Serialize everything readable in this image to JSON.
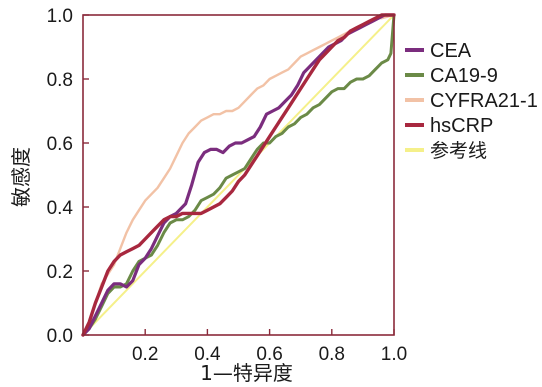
{
  "chart_data": {
    "type": "line",
    "title": "",
    "xlabel": "1—特异度",
    "ylabel": "敏感度",
    "xlim": [
      0,
      1
    ],
    "ylim": [
      0,
      1
    ],
    "x_ticks": [
      "0.2",
      "0.4",
      "0.6",
      "0.8",
      "1.0"
    ],
    "x_tick_values": [
      0.2,
      0.4,
      0.6,
      0.8,
      1.0
    ],
    "y_ticks": [
      "0.0",
      "0.2",
      "0.4",
      "0.6",
      "0.8",
      "1.0"
    ],
    "y_tick_values": [
      0.0,
      0.2,
      0.4,
      0.6,
      0.8,
      1.0
    ],
    "grid": false,
    "legend_position": "top-right",
    "series": [
      {
        "name": "CEA",
        "color": "#7b2d7e",
        "points": [
          [
            0,
            0
          ],
          [
            0.02,
            0.02
          ],
          [
            0.04,
            0.06
          ],
          [
            0.06,
            0.1
          ],
          [
            0.08,
            0.14
          ],
          [
            0.1,
            0.16
          ],
          [
            0.12,
            0.16
          ],
          [
            0.14,
            0.15
          ],
          [
            0.16,
            0.17
          ],
          [
            0.18,
            0.22
          ],
          [
            0.2,
            0.24
          ],
          [
            0.22,
            0.27
          ],
          [
            0.24,
            0.31
          ],
          [
            0.26,
            0.35
          ],
          [
            0.28,
            0.37
          ],
          [
            0.3,
            0.38
          ],
          [
            0.33,
            0.41
          ],
          [
            0.35,
            0.47
          ],
          [
            0.37,
            0.54
          ],
          [
            0.39,
            0.57
          ],
          [
            0.41,
            0.58
          ],
          [
            0.43,
            0.58
          ],
          [
            0.45,
            0.57
          ],
          [
            0.47,
            0.59
          ],
          [
            0.49,
            0.6
          ],
          [
            0.51,
            0.6
          ],
          [
            0.53,
            0.61
          ],
          [
            0.55,
            0.62
          ],
          [
            0.57,
            0.65
          ],
          [
            0.59,
            0.69
          ],
          [
            0.61,
            0.7
          ],
          [
            0.63,
            0.71
          ],
          [
            0.65,
            0.73
          ],
          [
            0.67,
            0.75
          ],
          [
            0.69,
            0.78
          ],
          [
            0.71,
            0.82
          ],
          [
            0.73,
            0.84
          ],
          [
            0.75,
            0.86
          ],
          [
            0.77,
            0.88
          ],
          [
            0.79,
            0.9
          ],
          [
            0.81,
            0.91
          ],
          [
            0.83,
            0.92
          ],
          [
            0.85,
            0.94
          ],
          [
            0.87,
            0.95
          ],
          [
            0.89,
            0.96
          ],
          [
            0.91,
            0.97
          ],
          [
            0.93,
            0.98
          ],
          [
            0.95,
            0.99
          ],
          [
            0.97,
            1.0
          ],
          [
            1.0,
            1.0
          ]
        ]
      },
      {
        "name": "CA19-9",
        "color": "#6b8a47",
        "points": [
          [
            0,
            0
          ],
          [
            0.02,
            0.02
          ],
          [
            0.04,
            0.05
          ],
          [
            0.06,
            0.09
          ],
          [
            0.08,
            0.13
          ],
          [
            0.1,
            0.15
          ],
          [
            0.12,
            0.15
          ],
          [
            0.14,
            0.16
          ],
          [
            0.16,
            0.2
          ],
          [
            0.18,
            0.23
          ],
          [
            0.2,
            0.24
          ],
          [
            0.22,
            0.25
          ],
          [
            0.24,
            0.28
          ],
          [
            0.26,
            0.32
          ],
          [
            0.28,
            0.35
          ],
          [
            0.3,
            0.36
          ],
          [
            0.32,
            0.36
          ],
          [
            0.34,
            0.37
          ],
          [
            0.36,
            0.39
          ],
          [
            0.38,
            0.42
          ],
          [
            0.4,
            0.43
          ],
          [
            0.42,
            0.44
          ],
          [
            0.44,
            0.46
          ],
          [
            0.46,
            0.49
          ],
          [
            0.48,
            0.5
          ],
          [
            0.5,
            0.51
          ],
          [
            0.52,
            0.52
          ],
          [
            0.54,
            0.55
          ],
          [
            0.56,
            0.58
          ],
          [
            0.58,
            0.6
          ],
          [
            0.6,
            0.6
          ],
          [
            0.62,
            0.62
          ],
          [
            0.64,
            0.63
          ],
          [
            0.66,
            0.65
          ],
          [
            0.68,
            0.66
          ],
          [
            0.7,
            0.68
          ],
          [
            0.72,
            0.69
          ],
          [
            0.74,
            0.71
          ],
          [
            0.76,
            0.72
          ],
          [
            0.78,
            0.74
          ],
          [
            0.8,
            0.76
          ],
          [
            0.82,
            0.77
          ],
          [
            0.84,
            0.77
          ],
          [
            0.86,
            0.79
          ],
          [
            0.88,
            0.8
          ],
          [
            0.9,
            0.8
          ],
          [
            0.92,
            0.81
          ],
          [
            0.94,
            0.83
          ],
          [
            0.96,
            0.85
          ],
          [
            0.98,
            0.86
          ],
          [
            0.99,
            0.88
          ],
          [
            1.0,
            1.0
          ]
        ]
      },
      {
        "name": "CYFRA21-1",
        "color": "#f2c2a6",
        "points": [
          [
            0,
            0
          ],
          [
            0.02,
            0.04
          ],
          [
            0.04,
            0.1
          ],
          [
            0.06,
            0.16
          ],
          [
            0.08,
            0.19
          ],
          [
            0.1,
            0.22
          ],
          [
            0.12,
            0.27
          ],
          [
            0.14,
            0.32
          ],
          [
            0.16,
            0.36
          ],
          [
            0.18,
            0.39
          ],
          [
            0.2,
            0.42
          ],
          [
            0.22,
            0.44
          ],
          [
            0.24,
            0.46
          ],
          [
            0.26,
            0.49
          ],
          [
            0.28,
            0.52
          ],
          [
            0.3,
            0.56
          ],
          [
            0.32,
            0.6
          ],
          [
            0.34,
            0.63
          ],
          [
            0.36,
            0.65
          ],
          [
            0.38,
            0.67
          ],
          [
            0.4,
            0.68
          ],
          [
            0.42,
            0.69
          ],
          [
            0.44,
            0.69
          ],
          [
            0.46,
            0.7
          ],
          [
            0.48,
            0.7
          ],
          [
            0.5,
            0.71
          ],
          [
            0.52,
            0.73
          ],
          [
            0.54,
            0.75
          ],
          [
            0.56,
            0.77
          ],
          [
            0.58,
            0.78
          ],
          [
            0.6,
            0.8
          ],
          [
            0.62,
            0.81
          ],
          [
            0.64,
            0.82
          ],
          [
            0.66,
            0.83
          ],
          [
            0.68,
            0.85
          ],
          [
            0.7,
            0.87
          ],
          [
            0.72,
            0.88
          ],
          [
            0.74,
            0.89
          ],
          [
            0.76,
            0.9
          ],
          [
            0.78,
            0.91
          ],
          [
            0.8,
            0.92
          ],
          [
            0.82,
            0.93
          ],
          [
            0.84,
            0.94
          ],
          [
            0.86,
            0.95
          ],
          [
            0.88,
            0.96
          ],
          [
            0.9,
            0.97
          ],
          [
            0.92,
            0.98
          ],
          [
            0.94,
            0.99
          ],
          [
            0.96,
            0.99
          ],
          [
            1.0,
            1.0
          ]
        ]
      },
      {
        "name": "hsCRP",
        "color": "#a8283f",
        "points": [
          [
            0,
            0
          ],
          [
            0.02,
            0.04
          ],
          [
            0.04,
            0.1
          ],
          [
            0.06,
            0.15
          ],
          [
            0.08,
            0.2
          ],
          [
            0.1,
            0.23
          ],
          [
            0.12,
            0.25
          ],
          [
            0.14,
            0.26
          ],
          [
            0.16,
            0.27
          ],
          [
            0.18,
            0.28
          ],
          [
            0.2,
            0.3
          ],
          [
            0.22,
            0.32
          ],
          [
            0.24,
            0.34
          ],
          [
            0.26,
            0.36
          ],
          [
            0.28,
            0.37
          ],
          [
            0.3,
            0.37
          ],
          [
            0.32,
            0.38
          ],
          [
            0.34,
            0.38
          ],
          [
            0.36,
            0.38
          ],
          [
            0.38,
            0.38
          ],
          [
            0.4,
            0.39
          ],
          [
            0.42,
            0.4
          ],
          [
            0.44,
            0.41
          ],
          [
            0.46,
            0.43
          ],
          [
            0.48,
            0.45
          ],
          [
            0.5,
            0.48
          ],
          [
            0.52,
            0.5
          ],
          [
            0.54,
            0.53
          ],
          [
            0.56,
            0.56
          ],
          [
            0.58,
            0.59
          ],
          [
            0.6,
            0.62
          ],
          [
            0.62,
            0.65
          ],
          [
            0.64,
            0.68
          ],
          [
            0.66,
            0.71
          ],
          [
            0.68,
            0.74
          ],
          [
            0.7,
            0.77
          ],
          [
            0.72,
            0.8
          ],
          [
            0.74,
            0.83
          ],
          [
            0.76,
            0.86
          ],
          [
            0.78,
            0.88
          ],
          [
            0.8,
            0.9
          ],
          [
            0.82,
            0.92
          ],
          [
            0.84,
            0.93
          ],
          [
            0.86,
            0.95
          ],
          [
            0.88,
            0.96
          ],
          [
            0.9,
            0.97
          ],
          [
            0.92,
            0.98
          ],
          [
            0.94,
            0.99
          ],
          [
            0.96,
            1.0
          ],
          [
            1.0,
            1.0
          ]
        ]
      },
      {
        "name": "参考线",
        "color": "#f5f08a",
        "points": [
          [
            0,
            0
          ],
          [
            1,
            1
          ]
        ]
      }
    ]
  }
}
